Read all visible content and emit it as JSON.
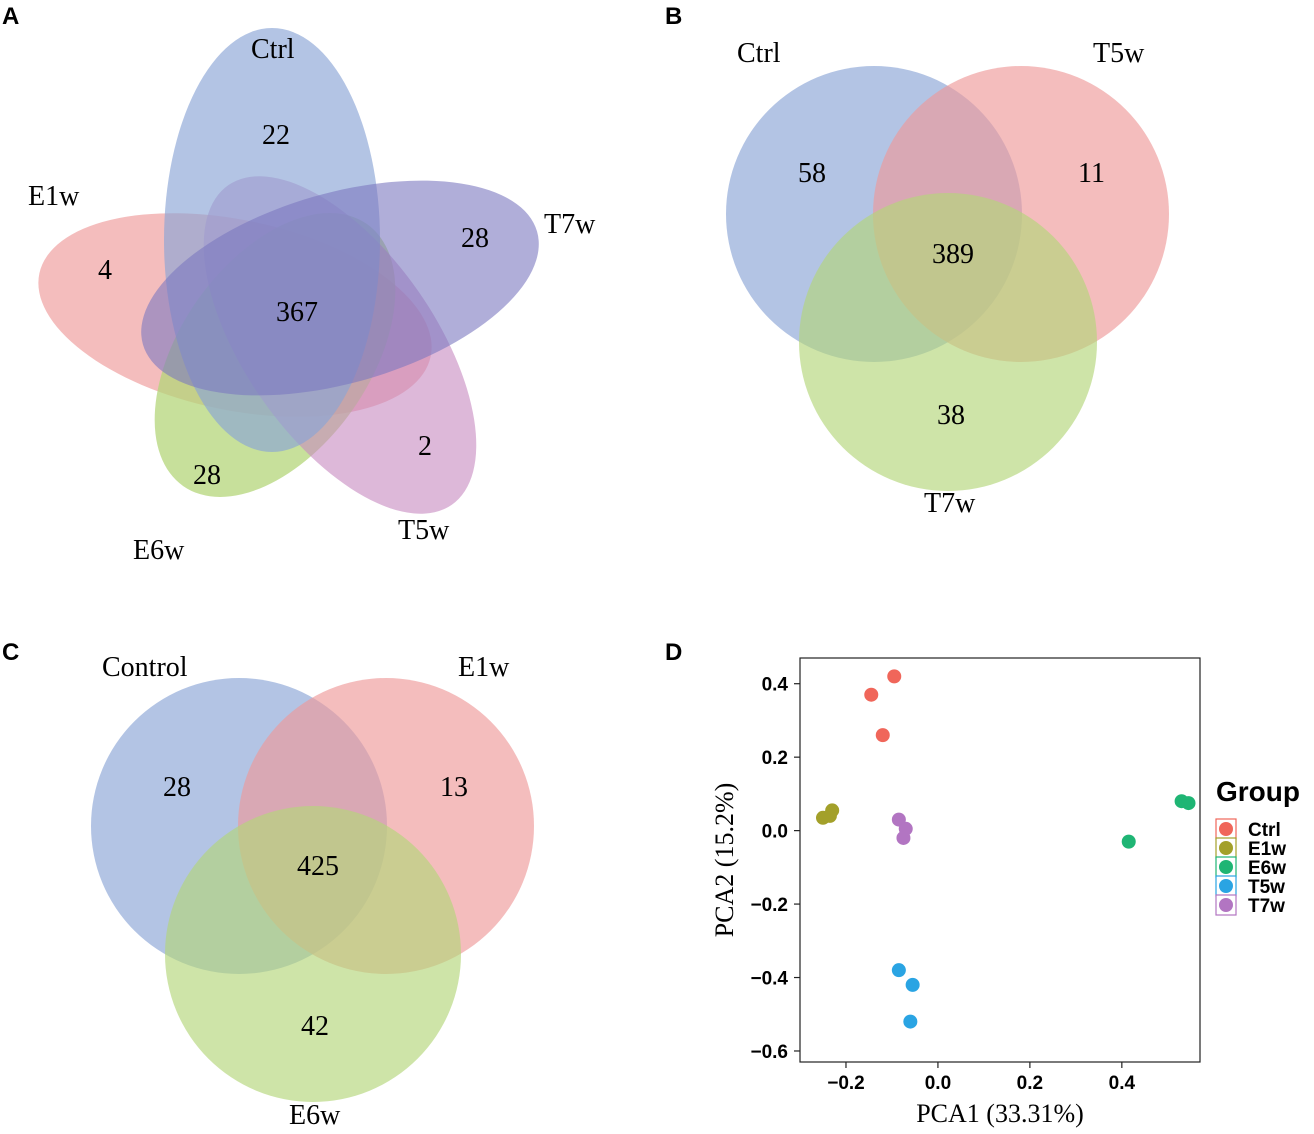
{
  "panels": {
    "A": {
      "letter": "A"
    },
    "B": {
      "letter": "B"
    },
    "C": {
      "letter": "C"
    },
    "D": {
      "letter": "D"
    }
  },
  "colors": {
    "venn_blue": "#8aa4d6",
    "venn_red": "#ee9a9a",
    "venn_green": "#b4d67a",
    "venn_purple": "#c689c0",
    "venn_indigo": "#7b78c0"
  },
  "chart_data": [
    {
      "id": "A",
      "type": "venn",
      "sets": [
        "Ctrl",
        "E1w",
        "E6w",
        "T5w",
        "T7w"
      ],
      "unique_counts": {
        "Ctrl": "22",
        "E1w": "4",
        "E6w": "28",
        "T5w": "2",
        "T7w": "28"
      },
      "shared_all": "367"
    },
    {
      "id": "B",
      "type": "venn",
      "sets": [
        "Ctrl",
        "T5w",
        "T7w"
      ],
      "unique_counts": {
        "Ctrl": "58",
        "T5w": "11",
        "T7w": "38"
      },
      "shared_all": "389"
    },
    {
      "id": "C",
      "type": "venn",
      "sets": [
        "Control",
        "E1w",
        "E6w"
      ],
      "unique_counts": {
        "Control": "28",
        "E1w": "13",
        "E6w": "42"
      },
      "shared_all": "425"
    },
    {
      "id": "D",
      "type": "scatter",
      "xlabel": "PCA1 (33.31%)",
      "ylabel": "PCA2 (15.2%)",
      "xlim": [
        -0.3,
        0.57
      ],
      "ylim": [
        -0.63,
        0.47
      ],
      "xticks": [
        -0.2,
        0.0,
        0.2,
        0.4
      ],
      "xtick_labels": [
        "−0.2",
        "0.0",
        "0.2",
        "0.4"
      ],
      "yticks": [
        -0.6,
        -0.4,
        -0.2,
        0.0,
        0.2,
        0.4
      ],
      "ytick_labels": [
        "−0.6",
        "−0.4",
        "−0.2",
        "0.0",
        "0.2",
        "0.4"
      ],
      "legend_title": "Group",
      "legend_position": "right",
      "series": [
        {
          "name": "Ctrl",
          "color": "#f0665a",
          "points": [
            [
              -0.095,
              0.42
            ],
            [
              -0.145,
              0.37
            ],
            [
              -0.12,
              0.26
            ]
          ]
        },
        {
          "name": "E1w",
          "color": "#a3a02a",
          "points": [
            [
              -0.25,
              0.035
            ],
            [
              -0.235,
              0.04
            ],
            [
              -0.23,
              0.055
            ]
          ]
        },
        {
          "name": "E6w",
          "color": "#1fb574",
          "points": [
            [
              0.53,
              0.08
            ],
            [
              0.545,
              0.075
            ],
            [
              0.415,
              -0.03
            ]
          ]
        },
        {
          "name": "T5w",
          "color": "#2aa4e3",
          "points": [
            [
              -0.085,
              -0.38
            ],
            [
              -0.055,
              -0.42
            ],
            [
              -0.06,
              -0.52
            ]
          ]
        },
        {
          "name": "T7w",
          "color": "#b275c2",
          "points": [
            [
              -0.085,
              0.03
            ],
            [
              -0.07,
              0.005
            ],
            [
              -0.075,
              -0.02
            ]
          ]
        }
      ]
    }
  ]
}
